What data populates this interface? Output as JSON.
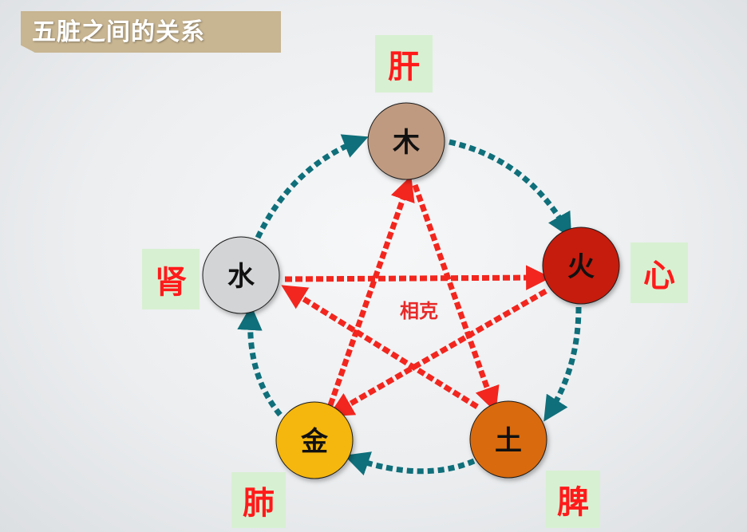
{
  "title": "五脏之间的关系",
  "center_label": "相克",
  "nodes": {
    "wood": {
      "element": "木",
      "organ": "肝",
      "color": "#bf9a80"
    },
    "fire": {
      "element": "火",
      "organ": "心",
      "color": "#c51b10"
    },
    "earth": {
      "element": "土",
      "organ": "脾",
      "color": "#d96a0a"
    },
    "metal": {
      "element": "金",
      "organ": "肺",
      "color": "#f5b60a"
    },
    "water": {
      "element": "水",
      "organ": "肾",
      "color": "#d2d4d6"
    }
  },
  "colors": {
    "generating_arrow": "#0f6f7a",
    "controlling_arrow": "#f2261e",
    "organ_box_bg": "#d8f0d2",
    "organ_text": "#ff1a1a",
    "banner_bg": "#c8b591"
  }
}
